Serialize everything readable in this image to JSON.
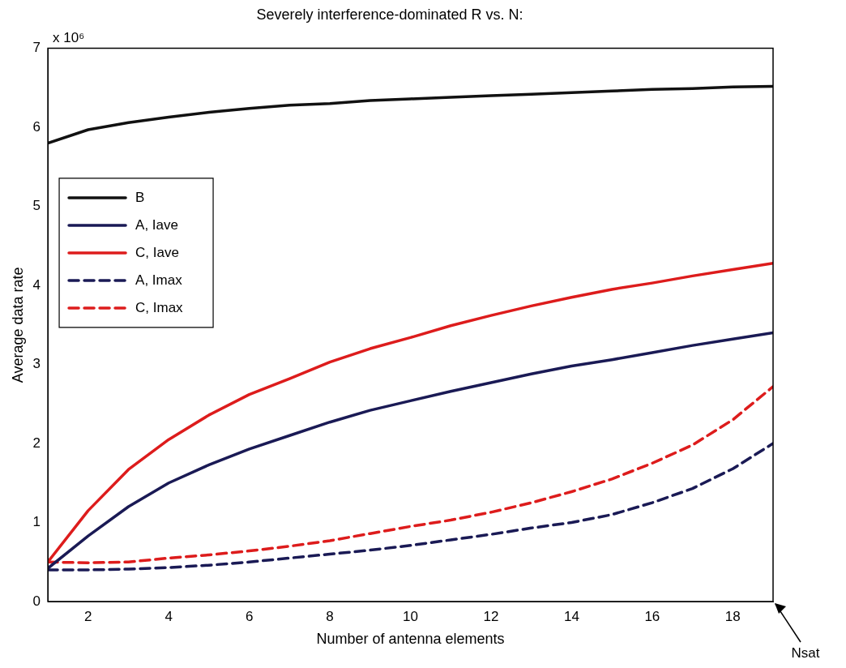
{
  "chart_data": {
    "type": "line",
    "title": "Severely interference-dominated R vs. N:",
    "xlabel": "Number of antenna elements",
    "ylabel": "Average data rate",
    "x": [
      1,
      2,
      3,
      4,
      5,
      6,
      7,
      8,
      9,
      10,
      11,
      12,
      13,
      14,
      15,
      16,
      17,
      18,
      19
    ],
    "series": [
      {
        "name": "B",
        "color": "#111111",
        "line_style": "solid",
        "values": [
          5.8,
          5.97,
          6.06,
          6.13,
          6.19,
          6.24,
          6.28,
          6.3,
          6.34,
          6.36,
          6.38,
          6.4,
          6.42,
          6.44,
          6.46,
          6.48,
          6.49,
          6.51,
          6.52
        ]
      },
      {
        "name": "A, Iave",
        "color": "#1a1a55",
        "line_style": "solid",
        "values": [
          0.42,
          0.83,
          1.2,
          1.5,
          1.73,
          1.93,
          2.1,
          2.27,
          2.42,
          2.54,
          2.66,
          2.77,
          2.88,
          2.98,
          3.06,
          3.15,
          3.24,
          3.32,
          3.4
        ]
      },
      {
        "name": "C, Iave",
        "color": "#dd1c1c",
        "line_style": "solid",
        "values": [
          0.5,
          1.15,
          1.67,
          2.05,
          2.36,
          2.62,
          2.82,
          3.03,
          3.2,
          3.34,
          3.49,
          3.62,
          3.74,
          3.85,
          3.95,
          4.03,
          4.12,
          4.2,
          4.28
        ]
      },
      {
        "name": "A, Imax",
        "color": "#1a1a55",
        "line_style": "dashed",
        "values": [
          0.4,
          0.4,
          0.41,
          0.43,
          0.46,
          0.5,
          0.55,
          0.6,
          0.65,
          0.71,
          0.78,
          0.85,
          0.93,
          1.0,
          1.1,
          1.25,
          1.43,
          1.68,
          2.0
        ]
      },
      {
        "name": "C, Imax",
        "color": "#dd1c1c",
        "line_style": "dashed",
        "values": [
          0.5,
          0.49,
          0.5,
          0.55,
          0.59,
          0.64,
          0.7,
          0.77,
          0.86,
          0.95,
          1.03,
          1.13,
          1.25,
          1.39,
          1.55,
          1.75,
          1.98,
          2.3,
          2.72
        ]
      }
    ],
    "xlim": [
      1,
      19
    ],
    "xticks": [
      2,
      4,
      6,
      8,
      10,
      12,
      14,
      16,
      18
    ],
    "ylim": [
      0,
      7
    ],
    "yticks": [
      0,
      1,
      2,
      3,
      4,
      5,
      6,
      7
    ],
    "grid": false,
    "legend": "top left",
    "marker": "none",
    "annotations": [
      "x 10⁶",
      "Nsat"
    ]
  }
}
